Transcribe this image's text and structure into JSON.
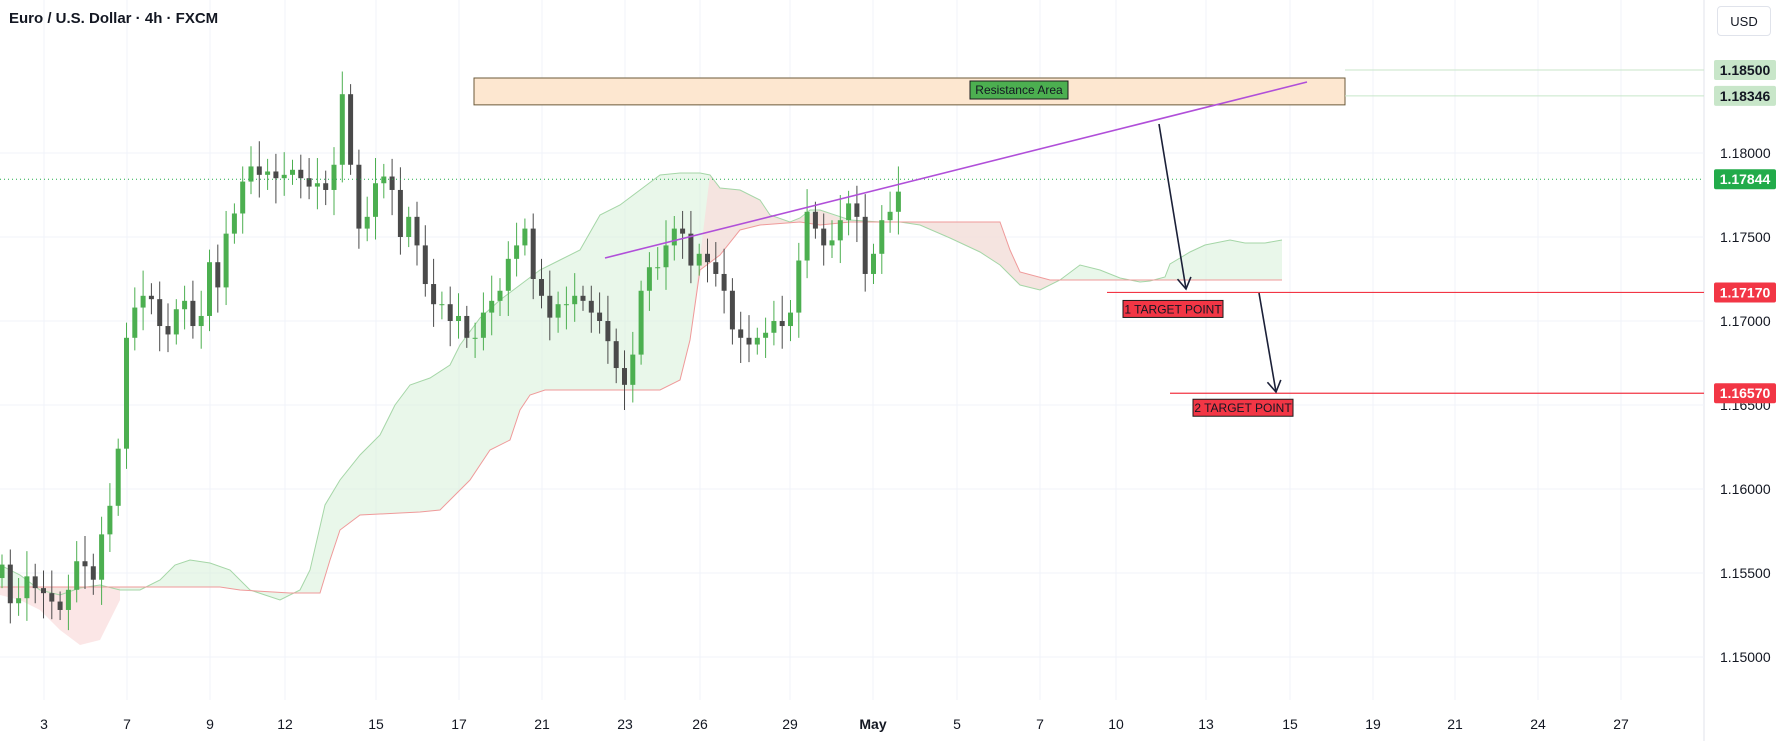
{
  "header": {
    "title": "Euro / U.S. Dollar · 4h · FXCM",
    "currency": "USD"
  },
  "colors": {
    "up": "#4caf50",
    "down": "#4a4a4a",
    "cloud_bull": "#d7f0d8",
    "cloud_bear": "#f9dcdc",
    "span_a": "#a5d6a7",
    "span_b": "#ef9a9a",
    "trendline": "#b04fd9",
    "target": "#f23645",
    "current_price": "#22ab4a",
    "resistance_fill": "#fde7d0",
    "arrow": "#1b2038"
  },
  "chart_data": {
    "type": "candlestick",
    "symbol": "EUR/USD",
    "timeframe": "4h",
    "ylim": [
      1.1475,
      1.1875
    ],
    "y_ticks": [
      "1.15000",
      "1.15500",
      "1.16000",
      "1.16500",
      "1.17000",
      "1.17500",
      "1.18000"
    ],
    "x_ticks": [
      "3",
      "7",
      "9",
      "12",
      "15",
      "17",
      "21",
      "23",
      "26",
      "29",
      "May",
      "5",
      "7",
      "10",
      "13",
      "15",
      "19",
      "21",
      "24",
      "27"
    ],
    "price_labels": [
      {
        "value": 1.185,
        "text": "1.18500",
        "style": "resistance"
      },
      {
        "value": 1.18346,
        "text": "1.18346",
        "style": "resistance"
      },
      {
        "value": 1.17844,
        "text": "1.17844",
        "style": "current"
      },
      {
        "value": 1.1717,
        "text": "1.17170",
        "style": "target"
      },
      {
        "value": 1.1657,
        "text": "1.16570",
        "style": "target"
      }
    ],
    "resistance_area": {
      "label": "Resistance Area",
      "top": 1.185,
      "bottom": 1.18346
    },
    "targets": [
      {
        "label": "1 TARGET POINT",
        "value": 1.1717
      },
      {
        "label": "2 TARGET POINT",
        "value": 1.1657
      }
    ],
    "current_price": 1.17844,
    "series_close": [
      1.1555,
      1.1532,
      1.1535,
      1.1548,
      1.1541,
      1.1538,
      1.1533,
      1.1528,
      1.154,
      1.1557,
      1.1554,
      1.1546,
      1.1573,
      1.159,
      1.1624,
      1.169,
      1.1708,
      1.1715,
      1.1713,
      1.1697,
      1.1692,
      1.1707,
      1.1712,
      1.1697,
      1.1703,
      1.1735,
      1.172,
      1.1752,
      1.1764,
      1.1783,
      1.1792,
      1.1787,
      1.1789,
      1.1785,
      1.1787,
      1.179,
      1.1785,
      1.178,
      1.1782,
      1.1778,
      1.1793,
      1.1835,
      1.1793,
      1.1755,
      1.1762,
      1.1782,
      1.1786,
      1.1778,
      1.175,
      1.1762,
      1.1745,
      1.1722,
      1.171,
      1.171,
      1.17,
      1.1703,
      1.169,
      1.169,
      1.1705,
      1.1712,
      1.1718,
      1.1737,
      1.1745,
      1.1755,
      1.1725,
      1.1715,
      1.1702,
      1.171,
      1.171,
      1.1715,
      1.1712,
      1.1705,
      1.17,
      1.1688,
      1.1672,
      1.1662,
      1.168,
      1.1718,
      1.1732,
      1.1732,
      1.1745,
      1.1755,
      1.1752,
      1.1733,
      1.174,
      1.1735,
      1.1728,
      1.1718,
      1.1695,
      1.169,
      1.1686,
      1.169,
      1.1693,
      1.17,
      1.1697,
      1.1705,
      1.1736,
      1.1765,
      1.1755,
      1.1745,
      1.1748,
      1.176,
      1.177,
      1.1762,
      1.1728,
      1.174,
      1.176,
      1.1765,
      1.1777
    ],
    "series_name": "EUR/USD"
  }
}
